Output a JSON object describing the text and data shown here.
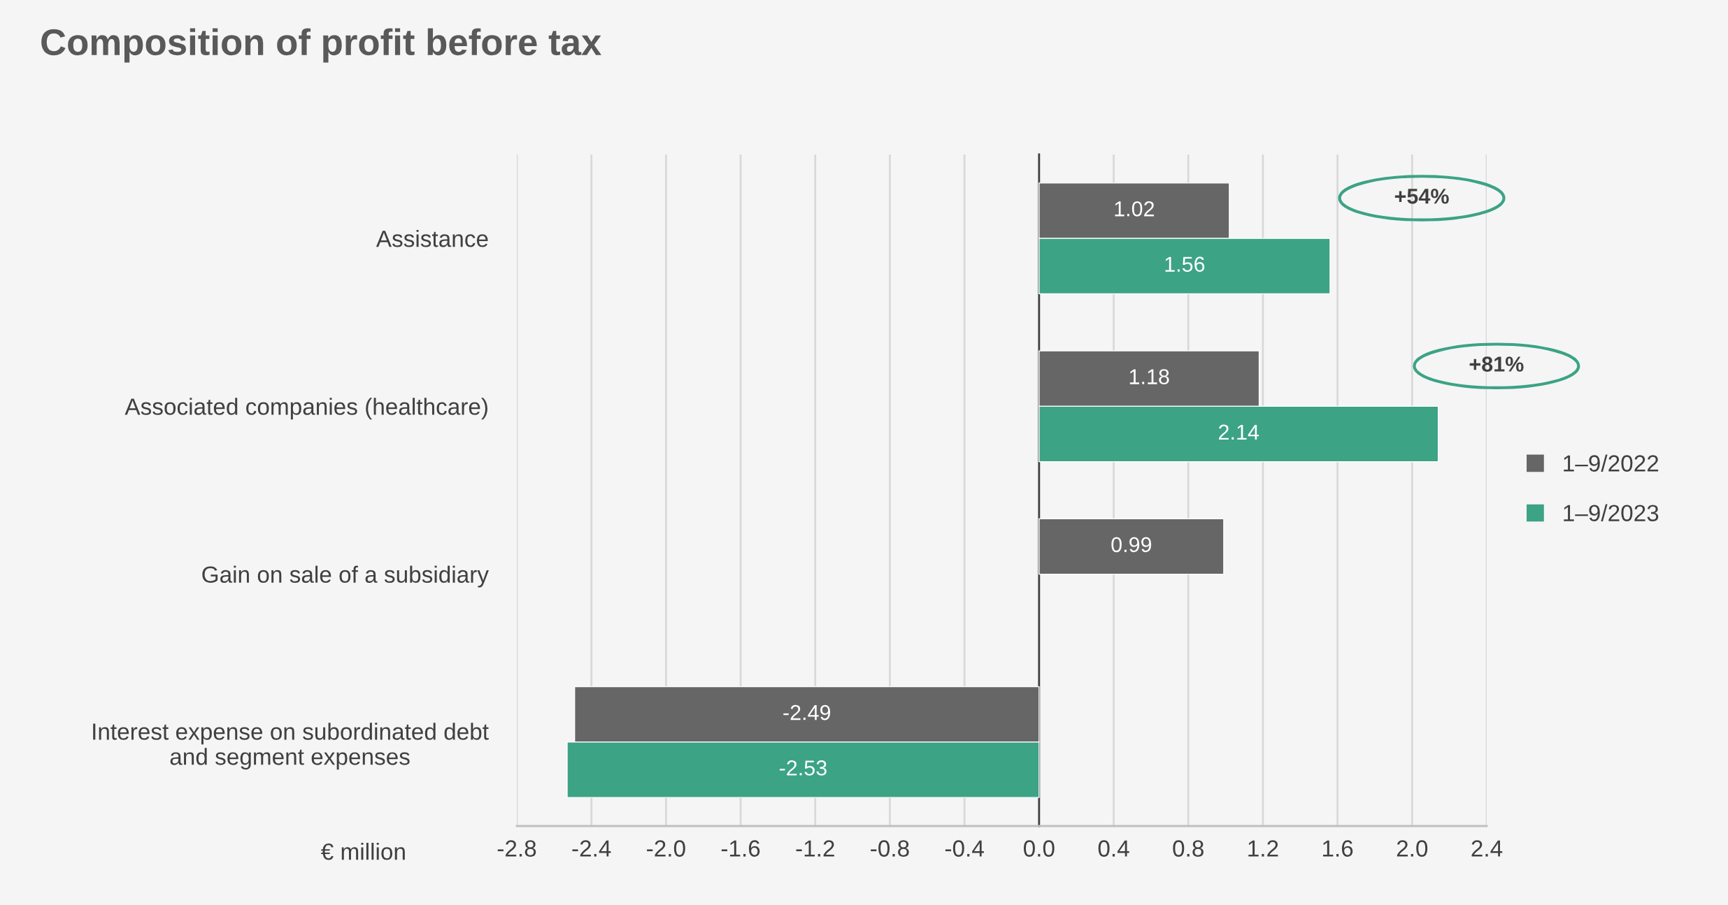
{
  "chart_data": {
    "type": "bar",
    "orientation": "horizontal",
    "title": "Composition of profit before tax",
    "xlabel": "€ million",
    "categories": [
      "Assistance",
      "Associated companies (healthcare)",
      "Gain on sale of a subsidiary",
      "Interest expense on subordinated debt\nand segment expenses"
    ],
    "series": [
      {
        "name": "1–9/2022",
        "color": "#666666",
        "values": [
          1.02,
          1.18,
          0.99,
          -2.49
        ]
      },
      {
        "name": "1–9/2023",
        "color": "#3ca385",
        "values": [
          1.56,
          2.14,
          null,
          -2.53
        ]
      }
    ],
    "xlim": [
      -2.8,
      2.4
    ],
    "xticks": [
      -2.8,
      -2.4,
      {
        "value": -2,
        "label": "-2.0"
      },
      -1.6,
      -1.2,
      -0.8,
      -0.4,
      {
        "value": 0,
        "label": "0.0"
      },
      0.4,
      0.8,
      1.2,
      1.6,
      {
        "value": 2,
        "label": "2.0"
      },
      2.4
    ],
    "grid": "x",
    "legend": "right",
    "data_labels": true,
    "annotations": [
      "+54%",
      "+81%"
    ]
  }
}
